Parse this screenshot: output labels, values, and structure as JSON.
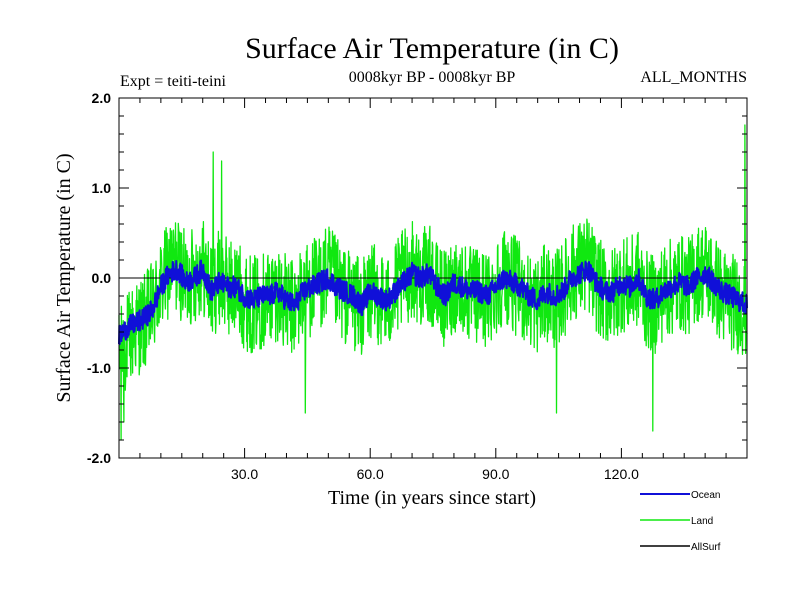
{
  "chart_data": {
    "type": "line",
    "title": "Surface Air Temperature (in C)",
    "subtitle_left": "Expt = teiti-teini",
    "subtitle_center": "0008kyr BP - 0008kyr BP",
    "subtitle_right": "ALL_MONTHS",
    "xlabel": "Time (in years since start)",
    "ylabel": "Surface Air Temperature (in C)",
    "xlim": [
      0,
      150
    ],
    "ylim": [
      -2.0,
      2.0
    ],
    "x_ticks": [
      {
        "value": 30,
        "label": "30.0"
      },
      {
        "value": 60,
        "label": "60.0"
      },
      {
        "value": 90,
        "label": "90.0"
      },
      {
        "value": 120,
        "label": "120.0"
      }
    ],
    "y_ticks": [
      {
        "value": 2.0,
        "label": "2.0"
      },
      {
        "value": 1.0,
        "label": "1.0"
      },
      {
        "value": 0.0,
        "label": "0.0"
      },
      {
        "value": -1.0,
        "label": "-1.0"
      },
      {
        "value": -2.0,
        "label": "-2.0"
      }
    ],
    "legend_position": "bottom-right",
    "series": [
      {
        "name": "Ocean",
        "color": "#1010d8",
        "anchors_x": [
          0,
          2,
          4,
          6,
          8,
          10,
          12,
          14,
          16,
          18,
          20,
          22,
          24,
          26,
          28,
          30,
          32,
          34,
          36,
          38,
          40,
          42,
          44,
          46,
          48,
          50,
          52,
          54,
          56,
          58,
          60,
          62,
          64,
          66,
          68,
          70,
          72,
          74,
          76,
          78,
          80,
          82,
          84,
          86,
          88,
          90,
          92,
          94,
          96,
          98,
          100,
          102,
          104,
          106,
          108,
          110,
          112,
          114,
          116,
          118,
          120,
          122,
          124,
          126,
          128,
          130,
          132,
          134,
          136,
          138,
          140,
          142,
          144,
          146,
          148,
          150
        ],
        "anchors_y": [
          -0.65,
          -0.55,
          -0.5,
          -0.45,
          -0.35,
          -0.1,
          0.05,
          0.1,
          -0.05,
          0.0,
          0.1,
          -0.15,
          -0.05,
          -0.1,
          -0.1,
          -0.2,
          -0.25,
          -0.2,
          -0.2,
          -0.15,
          -0.25,
          -0.3,
          -0.15,
          -0.1,
          -0.05,
          0.0,
          -0.1,
          -0.15,
          -0.2,
          -0.3,
          -0.15,
          -0.2,
          -0.25,
          -0.15,
          -0.05,
          0.05,
          0.0,
          0.05,
          -0.1,
          -0.2,
          -0.05,
          -0.1,
          -0.15,
          -0.15,
          -0.2,
          -0.1,
          0.0,
          -0.05,
          -0.1,
          -0.2,
          -0.25,
          -0.15,
          -0.2,
          -0.15,
          0.0,
          0.05,
          0.1,
          -0.05,
          -0.15,
          -0.15,
          -0.05,
          -0.1,
          0.0,
          -0.2,
          -0.25,
          -0.15,
          -0.1,
          -0.05,
          -0.1,
          0.0,
          0.05,
          -0.05,
          -0.15,
          -0.2,
          -0.25,
          -0.3
        ],
        "noise": 0.12
      },
      {
        "name": "Land",
        "color": "#10e810",
        "anchors_x": [
          0,
          2,
          4,
          6,
          8,
          10,
          12,
          14,
          16,
          18,
          20,
          22,
          24,
          26,
          28,
          30,
          32,
          34,
          36,
          38,
          40,
          42,
          44,
          46,
          48,
          50,
          52,
          54,
          56,
          58,
          60,
          62,
          64,
          66,
          68,
          70,
          72,
          74,
          76,
          78,
          80,
          82,
          84,
          86,
          88,
          90,
          92,
          94,
          96,
          98,
          100,
          102,
          104,
          106,
          108,
          110,
          112,
          114,
          116,
          118,
          120,
          122,
          124,
          126,
          128,
          130,
          132,
          134,
          136,
          138,
          140,
          142,
          144,
          146,
          148,
          150
        ],
        "anchors_y": [
          -0.9,
          -0.7,
          -0.55,
          -0.5,
          -0.35,
          -0.1,
          0.1,
          0.15,
          -0.05,
          0.05,
          0.15,
          -0.15,
          0.0,
          -0.1,
          -0.1,
          -0.25,
          -0.3,
          -0.25,
          -0.2,
          -0.15,
          -0.3,
          -0.35,
          -0.15,
          -0.1,
          -0.05,
          0.05,
          -0.1,
          -0.2,
          -0.25,
          -0.35,
          -0.15,
          -0.2,
          -0.3,
          -0.15,
          0.0,
          0.1,
          0.0,
          0.05,
          -0.15,
          -0.25,
          -0.05,
          -0.1,
          -0.2,
          -0.2,
          -0.25,
          -0.1,
          0.05,
          -0.05,
          -0.15,
          -0.25,
          -0.3,
          -0.15,
          -0.25,
          -0.15,
          0.05,
          0.1,
          0.15,
          -0.05,
          -0.2,
          -0.2,
          -0.05,
          -0.1,
          0.0,
          -0.25,
          -0.3,
          -0.15,
          -0.1,
          -0.05,
          -0.1,
          0.05,
          0.1,
          -0.05,
          -0.2,
          -0.25,
          -0.3,
          -0.35
        ],
        "noise": 0.55,
        "peaks": [
          {
            "x": 0.5,
            "y": -1.8
          },
          {
            "x": 1.2,
            "y": -1.6
          },
          {
            "x": 22.5,
            "y": 1.4
          },
          {
            "x": 24.5,
            "y": 1.3
          },
          {
            "x": 44.5,
            "y": -1.5
          },
          {
            "x": 104.5,
            "y": -1.5
          },
          {
            "x": 127.5,
            "y": -1.7
          },
          {
            "x": 149.5,
            "y": 1.7
          }
        ]
      },
      {
        "name": "AllSurf",
        "color": "#000000",
        "constant_y": 0.0
      }
    ]
  }
}
